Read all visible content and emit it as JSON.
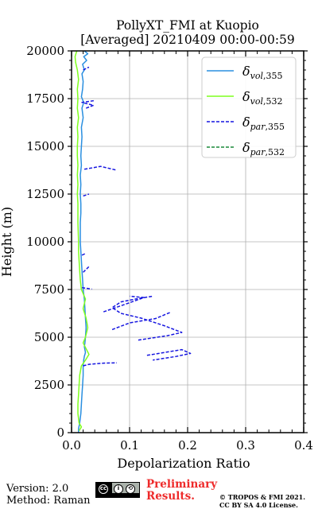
{
  "header": {
    "title_line1": "PollyXT_FMI at Kuopio",
    "title_line2": "[Averaged] 20210409 00:00-00:59"
  },
  "footer": {
    "version": "Version: 2.0",
    "method": "Method: Raman",
    "preliminary_line1": "Preliminary",
    "preliminary_line2": "Results.",
    "copyright_line1": "© TROPOS & FMI 2021.",
    "copyright_line2": "CC BY SA 4.0 License.",
    "license_badge": "cc-by-sa-icon"
  },
  "chart_data": {
    "type": "line",
    "xlabel": "Depolarization Ratio",
    "ylabel": "Height (m)",
    "xlim": [
      0,
      0.4
    ],
    "ylim": [
      0,
      20000
    ],
    "xticks": [
      "0.0",
      "0.1",
      "0.2",
      "0.3",
      "0.4"
    ],
    "yticks": [
      "0",
      "2500",
      "5000",
      "7500",
      "10000",
      "12500",
      "15000",
      "17500",
      "20000"
    ],
    "grid": true,
    "legend_position": "top-right",
    "series": [
      {
        "name": "δvol,355",
        "color": "#2a8fe0",
        "style": "solid",
        "points": [
          [
            0.012,
            0
          ],
          [
            0.012,
            200
          ],
          [
            0.014,
            500
          ],
          [
            0.016,
            1000
          ],
          [
            0.017,
            1500
          ],
          [
            0.018,
            2000
          ],
          [
            0.019,
            2500
          ],
          [
            0.02,
            3000
          ],
          [
            0.02,
            3500
          ],
          [
            0.021,
            3800
          ],
          [
            0.022,
            4000
          ],
          [
            0.024,
            4200
          ],
          [
            0.022,
            4500
          ],
          [
            0.023,
            4700
          ],
          [
            0.024,
            5000
          ],
          [
            0.025,
            5500
          ],
          [
            0.024,
            6000
          ],
          [
            0.023,
            6500
          ],
          [
            0.022,
            7000
          ],
          [
            0.02,
            7500
          ],
          [
            0.019,
            8000
          ],
          [
            0.018,
            8500
          ],
          [
            0.017,
            9000
          ],
          [
            0.016,
            9500
          ],
          [
            0.015,
            10000
          ],
          [
            0.015,
            10500
          ],
          [
            0.015,
            11000
          ],
          [
            0.016,
            11500
          ],
          [
            0.016,
            12000
          ],
          [
            0.015,
            12500
          ],
          [
            0.016,
            13000
          ],
          [
            0.015,
            13500
          ],
          [
            0.017,
            14000
          ],
          [
            0.016,
            14500
          ],
          [
            0.017,
            15000
          ],
          [
            0.018,
            15500
          ],
          [
            0.017,
            16000
          ],
          [
            0.02,
            16500
          ],
          [
            0.018,
            17000
          ],
          [
            0.021,
            17300
          ],
          [
            0.017,
            17600
          ],
          [
            0.019,
            18000
          ],
          [
            0.02,
            18400
          ],
          [
            0.018,
            18800
          ],
          [
            0.022,
            19000
          ],
          [
            0.019,
            19300
          ],
          [
            0.026,
            19500
          ],
          [
            0.021,
            19700
          ],
          [
            0.028,
            19850
          ],
          [
            0.022,
            20000
          ]
        ]
      },
      {
        "name": "δvol,532",
        "color": "#7fff1e",
        "style": "solid",
        "points": [
          [
            0.013,
            100
          ],
          [
            0.017,
            300
          ],
          [
            0.013,
            500
          ],
          [
            0.011,
            1000
          ],
          [
            0.011,
            1500
          ],
          [
            0.012,
            2000
          ],
          [
            0.013,
            2500
          ],
          [
            0.014,
            3000
          ],
          [
            0.017,
            3500
          ],
          [
            0.024,
            3800
          ],
          [
            0.03,
            4100
          ],
          [
            0.025,
            4400
          ],
          [
            0.02,
            4700
          ],
          [
            0.024,
            5000
          ],
          [
            0.028,
            5500
          ],
          [
            0.025,
            6000
          ],
          [
            0.02,
            6500
          ],
          [
            0.024,
            7000
          ],
          [
            0.017,
            7500
          ],
          [
            0.015,
            8000
          ],
          [
            0.014,
            8500
          ],
          [
            0.013,
            9000
          ],
          [
            0.012,
            9500
          ],
          [
            0.012,
            10000
          ],
          [
            0.011,
            11000
          ],
          [
            0.011,
            12000
          ],
          [
            0.01,
            12500
          ],
          [
            0.011,
            13000
          ],
          [
            0.01,
            13500
          ],
          [
            0.011,
            14000
          ],
          [
            0.01,
            14500
          ],
          [
            0.01,
            15000
          ],
          [
            0.011,
            15500
          ],
          [
            0.01,
            16000
          ],
          [
            0.012,
            16500
          ],
          [
            0.01,
            17000
          ],
          [
            0.011,
            17500
          ],
          [
            0.01,
            18000
          ],
          [
            0.012,
            18500
          ],
          [
            0.01,
            19000
          ],
          [
            0.007,
            19400
          ],
          [
            0.006,
            19700
          ],
          [
            0.009,
            20000
          ]
        ]
      },
      {
        "name": "δpar,355",
        "color": "#1515e0",
        "style": "dashed",
        "segments": [
          [
            [
              0.02,
              3500
            ],
            [
              0.03,
              3580
            ],
            [
              0.055,
              3640
            ],
            [
              0.078,
              3660
            ]
          ],
          [
            [
              0.13,
              4050
            ],
            [
              0.16,
              4200
            ],
            [
              0.19,
              4350
            ],
            [
              0.205,
              4150
            ],
            [
              0.18,
              3990
            ],
            [
              0.14,
              3800
            ]
          ],
          [
            [
              0.115,
              4850
            ],
            [
              0.165,
              5080
            ],
            [
              0.19,
              5250
            ],
            [
              0.16,
              5600
            ],
            [
              0.12,
              6000
            ],
            [
              0.085,
              6250
            ],
            [
              0.07,
              6550
            ],
            [
              0.085,
              6850
            ],
            [
              0.11,
              7000
            ],
            [
              0.14,
              7150
            ]
          ],
          [
            [
              0.07,
              5400
            ],
            [
              0.1,
              5750
            ],
            [
              0.145,
              5980
            ],
            [
              0.17,
              6300
            ]
          ],
          [
            [
              0.055,
              6330
            ],
            [
              0.09,
              6700
            ],
            [
              0.125,
              7080
            ],
            [
              0.1,
              7150
            ]
          ],
          [
            [
              0.018,
              7600
            ],
            [
              0.035,
              7520
            ]
          ],
          [
            [
              0.02,
              8400
            ],
            [
              0.03,
              8700
            ]
          ],
          [
            [
              0.018,
              9300
            ],
            [
              0.025,
              9400
            ]
          ],
          [
            [
              0.02,
              12400
            ],
            [
              0.03,
              12500
            ]
          ],
          [
            [
              0.022,
              13800
            ],
            [
              0.05,
              13950
            ],
            [
              0.078,
              13750
            ]
          ],
          [
            [
              0.025,
              17000
            ],
            [
              0.038,
              17150
            ],
            [
              0.018,
              17300
            ],
            [
              0.04,
              17400
            ]
          ],
          [
            [
              0.02,
              19000
            ],
            [
              0.03,
              19150
            ]
          ]
        ]
      },
      {
        "name": "δpar,532",
        "color": "#1a8a3a",
        "style": "dashed",
        "segments": []
      }
    ]
  }
}
